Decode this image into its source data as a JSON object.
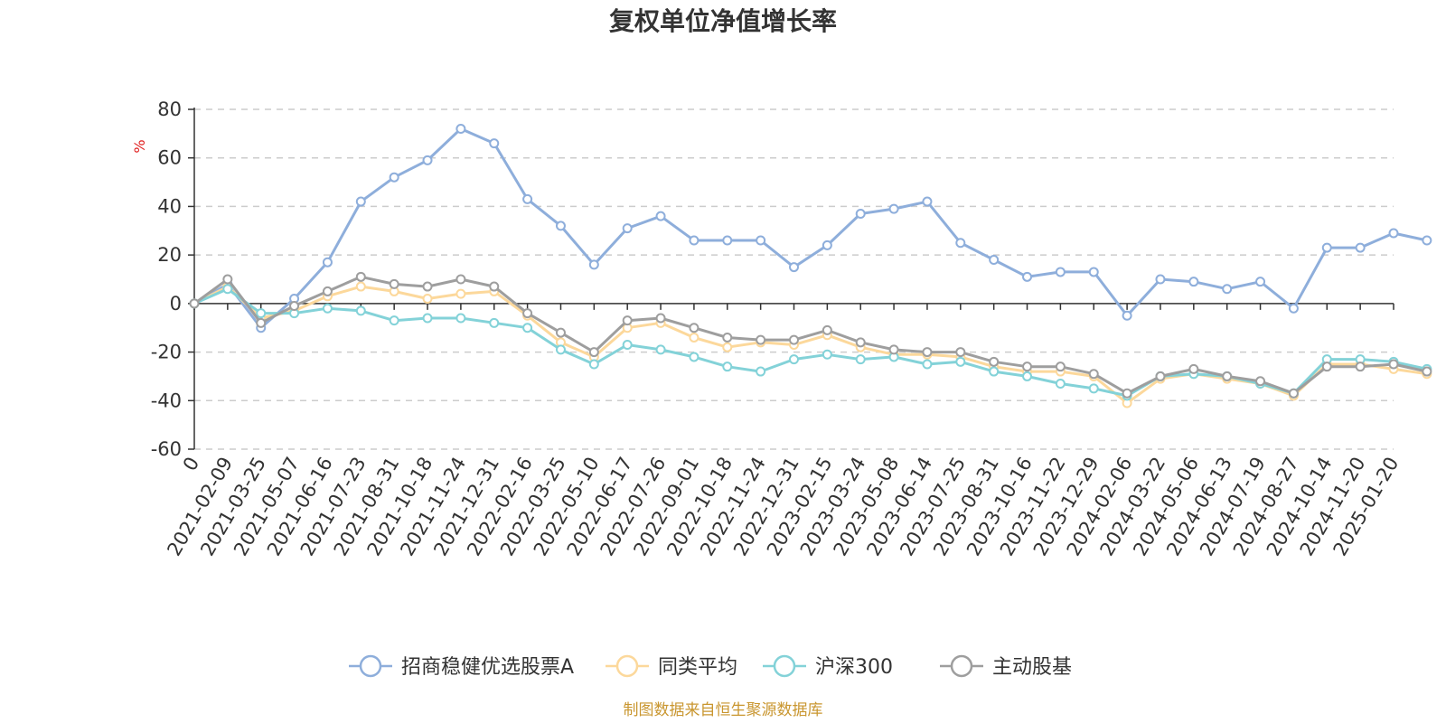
{
  "chart_data": {
    "type": "line",
    "title": "复权单位净值增长率",
    "ylabel": "%",
    "ylim": [
      -60,
      80
    ],
    "yticks": [
      -60,
      -40,
      -20,
      0,
      20,
      40,
      60,
      80
    ],
    "grid": "horizontal-dashed",
    "legend_position": "bottom",
    "x_ticks": [
      "0",
      "2021-02-09",
      "2021-03-25",
      "2021-05-07",
      "2021-06-16",
      "2021-07-23",
      "2021-08-31",
      "2021-10-18",
      "2021-11-24",
      "2021-12-31",
      "2022-02-16",
      "2022-03-25",
      "2022-05-10",
      "2022-06-17",
      "2022-07-26",
      "2022-09-01",
      "2022-10-18",
      "2022-11-24",
      "2022-12-31",
      "2023-02-15",
      "2023-03-24",
      "2023-05-08",
      "2023-06-14",
      "2023-07-25",
      "2023-08-31",
      "2023-10-16",
      "2023-11-22",
      "2023-12-29",
      "2024-02-06",
      "2024-03-22",
      "2024-05-06",
      "2024-06-13",
      "2024-07-19",
      "2024-08-27",
      "2024-10-14",
      "2024-11-20",
      "2025-01-20"
    ],
    "series": [
      {
        "name": "招商稳健优选股票A",
        "color": "#8eaedb",
        "values": [
          0,
          8,
          -10,
          2,
          17,
          42,
          52,
          59,
          72,
          66,
          43,
          32,
          16,
          31,
          36,
          26,
          26,
          26,
          15,
          24,
          37,
          39,
          42,
          25,
          18,
          11,
          13,
          13,
          -5,
          10,
          9,
          6,
          9,
          -2,
          23,
          23,
          29,
          26
        ]
      },
      {
        "name": "同类平均",
        "color": "#fcd89b",
        "values": [
          0,
          7,
          -6,
          -3,
          3,
          7,
          5,
          2,
          4,
          5,
          -5,
          -16,
          -22,
          -10,
          -8,
          -14,
          -18,
          -16,
          -17,
          -13,
          -18,
          -21,
          -21,
          -22,
          -26,
          -28,
          -28,
          -30,
          -41,
          -31,
          -29,
          -31,
          -33,
          -38,
          -25,
          -25,
          -27,
          -29
        ]
      },
      {
        "name": "沪深300",
        "color": "#83d2d8",
        "values": [
          0,
          6,
          -4,
          -4,
          -2,
          -3,
          -7,
          -6,
          -6,
          -8,
          -10,
          -19,
          -25,
          -17,
          -19,
          -22,
          -26,
          -28,
          -23,
          -21,
          -23,
          -22,
          -25,
          -24,
          -28,
          -30,
          -33,
          -35,
          -38,
          -30,
          -29,
          -30,
          -33,
          -37,
          -23,
          -23,
          -24,
          -27
        ]
      },
      {
        "name": "主动股基",
        "color": "#9e9e9e",
        "values": [
          0,
          10,
          -8,
          -1,
          5,
          11,
          8,
          7,
          10,
          7,
          -4,
          -12,
          -20,
          -7,
          -6,
          -10,
          -14,
          -15,
          -15,
          -11,
          -16,
          -19,
          -20,
          -20,
          -24,
          -26,
          -26,
          -29,
          -37,
          -30,
          -27,
          -30,
          -32,
          -37,
          -26,
          -26,
          -25,
          -28
        ]
      }
    ]
  },
  "source": "制图数据来自恒生聚源数据库"
}
